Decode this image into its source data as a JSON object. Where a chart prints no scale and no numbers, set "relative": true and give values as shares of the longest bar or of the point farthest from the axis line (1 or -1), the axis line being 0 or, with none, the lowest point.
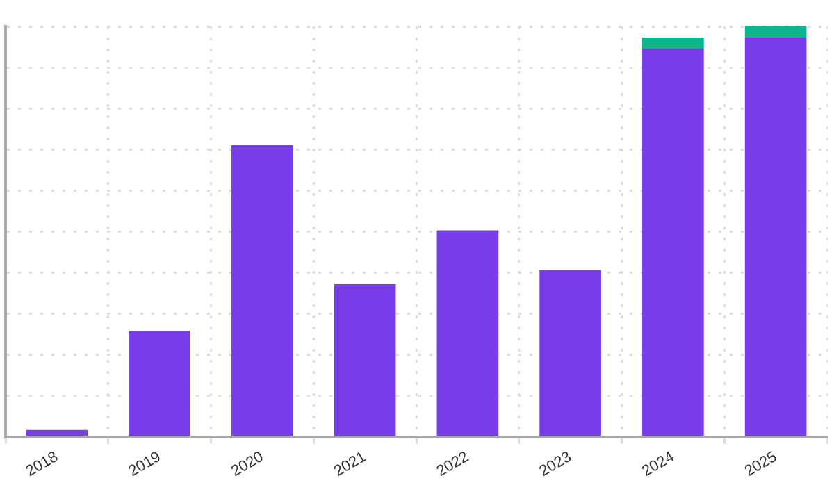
{
  "chart_data": {
    "type": "bar",
    "relative": true,
    "stacked": true,
    "categories": [
      "2018",
      "2019",
      "2020",
      "2021",
      "2022",
      "2023",
      "2024",
      "2025"
    ],
    "series": [
      {
        "color": "#773de9",
        "values": [
          0.017,
          0.258,
          0.711,
          0.372,
          0.503,
          0.406,
          0.946,
          0.973
        ]
      },
      {
        "color": "#0db58f",
        "values": [
          null,
          null,
          null,
          null,
          null,
          null,
          0.027,
          0.027
        ]
      }
    ],
    "grid": true,
    "legend": false
  }
}
